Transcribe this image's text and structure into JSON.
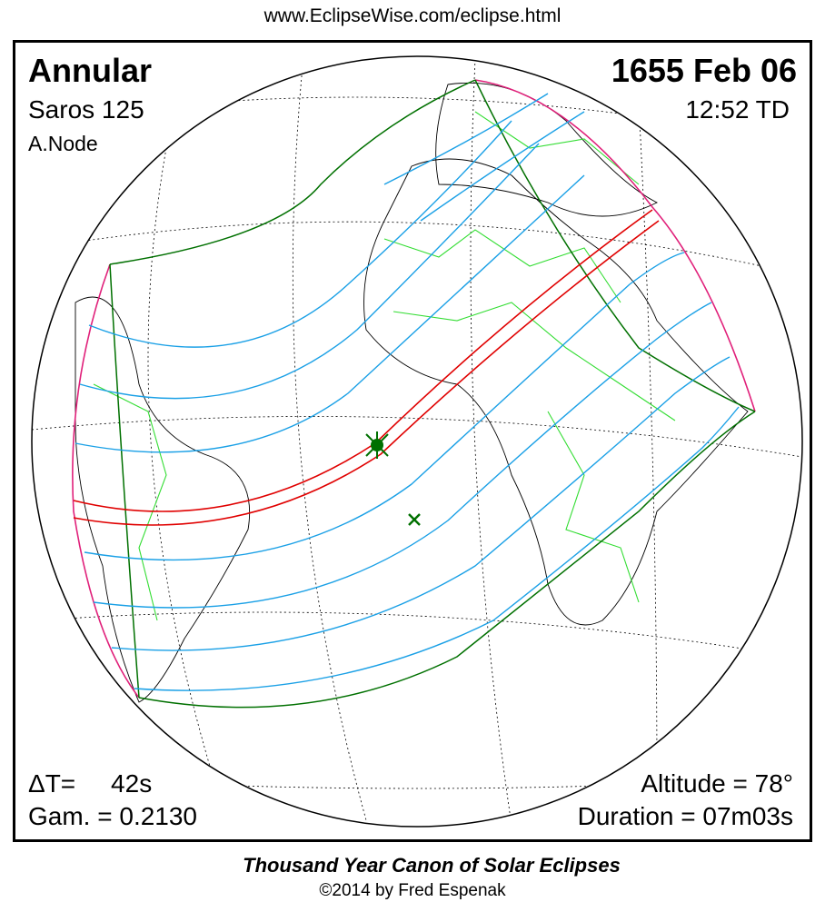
{
  "header": {
    "url": "www.EclipseWise.com/eclipse.html"
  },
  "eclipse": {
    "type": "Annular",
    "saros": "Saros 125",
    "node": "A.Node",
    "date": "1655 Feb 06",
    "time": "12:52 TD",
    "delta_t": "ΔT=     42s",
    "gamma": "Gam. = 0.2130",
    "altitude": "Altitude = 78°",
    "duration": "Duration = 07m03s"
  },
  "colors": {
    "central_path": "#e00000",
    "penumbral_limits": "#1aa0e6",
    "outer_limits": "#007000",
    "rise_set": "#e0207a",
    "borders": "#33dd33"
  },
  "footer": {
    "canon": "Thousand Year Canon of Solar Eclipses",
    "copyright": "©2014 by Fred Espenak"
  }
}
